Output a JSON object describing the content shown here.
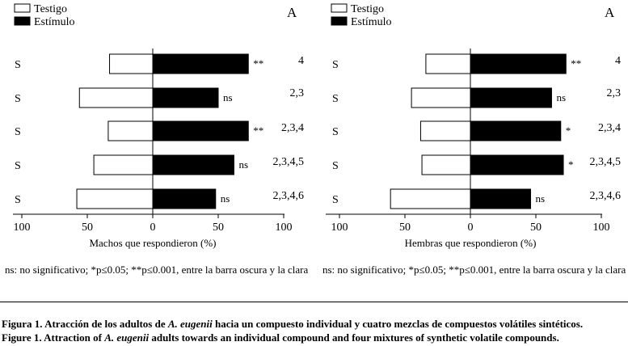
{
  "chart_data": [
    {
      "type": "bar",
      "panel_label": "A",
      "legend": [
        "Testigo",
        "Estímulo"
      ],
      "categories": [
        "4",
        "2,3",
        "2,3,4",
        "2,3,4,5",
        "2,3,4,6"
      ],
      "row_labels": [
        "S",
        "S",
        "S",
        "S",
        "S"
      ],
      "series": [
        {
          "name": "Testigo",
          "values": [
            33,
            56,
            34,
            45,
            58
          ]
        },
        {
          "name": "Estímulo",
          "values": [
            73,
            50,
            73,
            62,
            48
          ]
        }
      ],
      "significance": [
        "**",
        "ns",
        "**",
        "ns",
        "ns"
      ],
      "xlim": [
        -100,
        100
      ],
      "xticks": [
        "100",
        "50",
        "0",
        "50",
        "100"
      ],
      "xlabel": "Machos que respondieron (%)",
      "note": "ns: no significativo; *p≤0.05; **p≤0.001, entre la barra oscura y la clara"
    },
    {
      "type": "bar",
      "panel_label": "A",
      "legend": [
        "Testigo",
        "Estímulo"
      ],
      "categories": [
        "4",
        "2,3",
        "2,3,4",
        "2,3,4,5",
        "2,3,4,6"
      ],
      "row_labels": [
        "S",
        "S",
        "S",
        "S",
        "S"
      ],
      "series": [
        {
          "name": "Testigo",
          "values": [
            34,
            45,
            38,
            37,
            61
          ]
        },
        {
          "name": "Estímulo",
          "values": [
            73,
            62,
            69,
            71,
            46
          ]
        }
      ],
      "significance": [
        "**",
        "ns",
        "*",
        "*",
        "ns"
      ],
      "xlim": [
        -100,
        100
      ],
      "xticks": [
        "100",
        "50",
        "0",
        "50",
        "100"
      ],
      "xlabel": "Hembras que respondieron (%)",
      "note": "ns: no significativo; *p≤0.05; **p≤0.001, entre la barra oscura y la clara"
    }
  ],
  "caption": {
    "es": {
      "lead": "Figura 1. Atracción de los adultos de ",
      "species": "A. eugenii",
      "tail": " hacia un compuesto individual y cuatro mezclas de compuestos volátiles sintéticos."
    },
    "en": {
      "lead": "Figure 1. Attraction of ",
      "species": "A. eugenii",
      "tail": " adults towards an individual compound and four mixtures of synthetic volatile compounds."
    }
  }
}
